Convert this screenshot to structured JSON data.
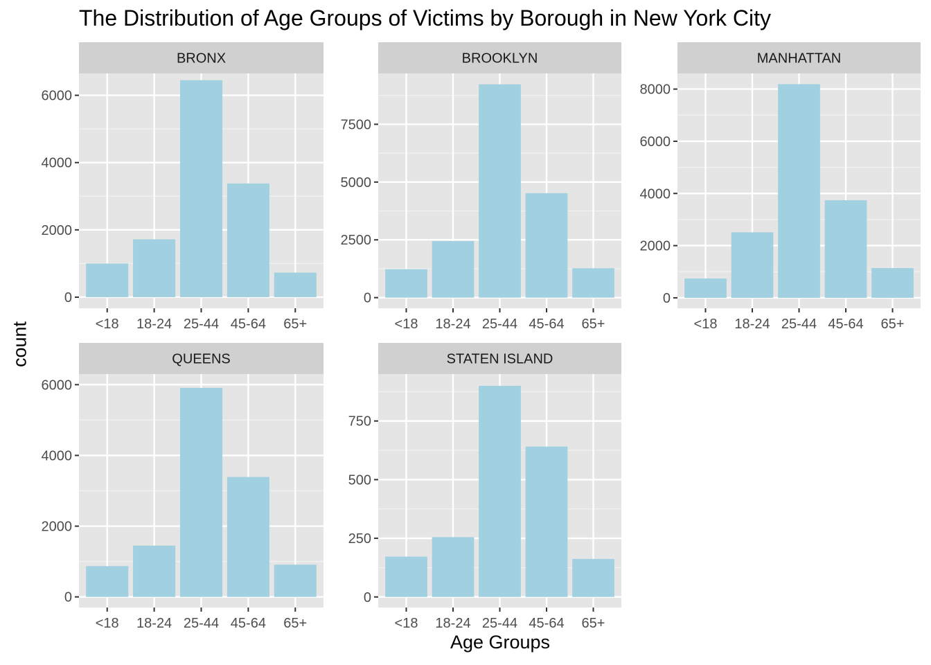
{
  "chart_data": {
    "type": "bar",
    "title": "The Distribution of Age Groups of Victims by Borough in New York City",
    "xlabel": "Age Groups",
    "ylabel": "count",
    "categories": [
      "<18",
      "18-24",
      "25-44",
      "45-64",
      "65+"
    ],
    "bar_color": "#a1d0e0",
    "panel_background": "#e5e5e5",
    "strip_background": "#d0d0d0",
    "grid": true,
    "panels": [
      {
        "name": "BRONX",
        "values": [
          1000,
          1720,
          6450,
          3380,
          730
        ],
        "ylim": [
          -330,
          6650
        ],
        "yticks": [
          0,
          2000,
          4000,
          6000
        ]
      },
      {
        "name": "BROOKLYN",
        "values": [
          1230,
          2450,
          9230,
          4520,
          1270
        ],
        "ylim": [
          -460,
          9700
        ],
        "yticks": [
          0,
          2500,
          5000,
          7500
        ]
      },
      {
        "name": "MANHATTAN",
        "values": [
          740,
          2510,
          8190,
          3740,
          1140
        ],
        "ylim": [
          -400,
          8600
        ],
        "yticks": [
          0,
          2000,
          4000,
          6000,
          8000
        ]
      },
      {
        "name": "QUEENS",
        "values": [
          870,
          1450,
          5910,
          3390,
          910
        ],
        "ylim": [
          -300,
          6300
        ],
        "yticks": [
          0,
          2000,
          4000,
          6000
        ]
      },
      {
        "name": "STATEN ISLAND",
        "values": [
          172,
          255,
          900,
          641,
          162
        ],
        "ylim": [
          -45,
          950
        ],
        "yticks": [
          0,
          250,
          500,
          750
        ]
      }
    ]
  }
}
